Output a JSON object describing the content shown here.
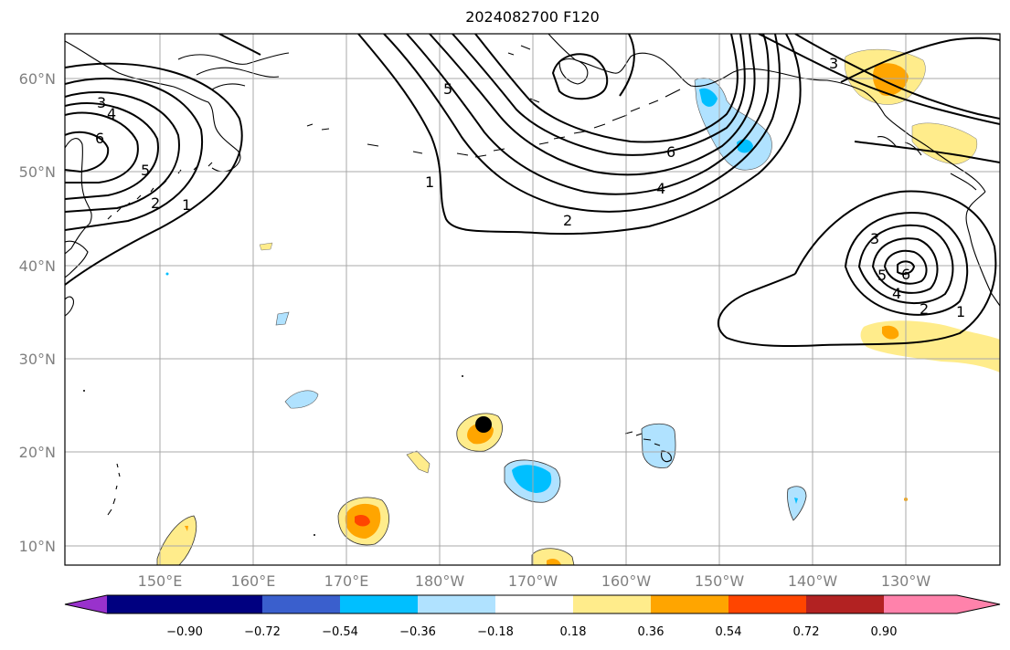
{
  "title": "2024082700 F120",
  "latitude_labels": [
    "10°N",
    "20°N",
    "30°N",
    "40°N",
    "50°N",
    "60°N"
  ],
  "longitude_labels": [
    "150°E",
    "160°E",
    "170°E",
    "180°W",
    "170°W",
    "160°W",
    "150°W",
    "140°W",
    "130°W"
  ],
  "colorbar": {
    "tick_labels": [
      "−0.90",
      "−0.72",
      "−0.54",
      "−0.36",
      "−0.18",
      "0.18",
      "0.36",
      "0.54",
      "0.72",
      "0.90"
    ],
    "colors": [
      "#9932cc",
      "#000080",
      "#3a5fcd",
      "#00bfff",
      "#b0e2ff",
      "#ffffff",
      "#ffec8b",
      "#ffa500",
      "#ff4500",
      "#b22222",
      "#ff82ab"
    ]
  },
  "contour_labels": [
    "3",
    "4",
    "6",
    "5",
    "2",
    "1",
    "5",
    "1",
    "6",
    "4",
    "2",
    "3",
    "3",
    "5",
    "6",
    "4",
    "2",
    "1"
  ],
  "marker": {
    "label": "storm-center",
    "color": "#000000"
  }
}
